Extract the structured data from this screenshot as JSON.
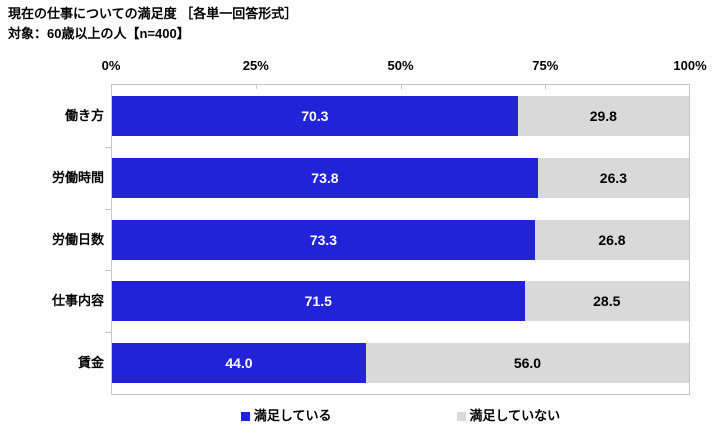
{
  "header": {
    "title": "現在の仕事についての満足度 ［各単一回答形式］",
    "subtitle": "対象：60歳以上の人【n=400】"
  },
  "colors": {
    "satisfied": "#2222d6",
    "not_satisfied": "#d9d9d9",
    "satisfied_text": "#ffffff",
    "not_satisfied_text": "#000000",
    "plot_border": "#c6c6c6",
    "background": "#ffffff"
  },
  "chart_data": {
    "type": "bar",
    "orientation": "horizontal",
    "stacked": true,
    "title": "現在の仕事についての満足度 ［各単一回答形式］",
    "subtitle": "対象：60歳以上の人【n=400】",
    "categories": [
      "働き方",
      "労働時間",
      "労働日数",
      "仕事内容",
      "賃金"
    ],
    "series": [
      {
        "name": "満足している",
        "color": "#2222d6",
        "text_color": "#ffffff",
        "values": [
          70.3,
          73.8,
          73.3,
          71.5,
          44.0
        ]
      },
      {
        "name": "満足していない",
        "color": "#d9d9d9",
        "text_color": "#000000",
        "values": [
          29.8,
          26.3,
          26.8,
          28.5,
          56.0
        ]
      }
    ],
    "x_axis": {
      "position": "top",
      "range": [
        0,
        100
      ],
      "ticks": [
        "0%",
        "25%",
        "50%",
        "75%",
        "100%"
      ]
    },
    "value_label_format": "one_decimal",
    "legend_position": "bottom",
    "grid": false
  }
}
